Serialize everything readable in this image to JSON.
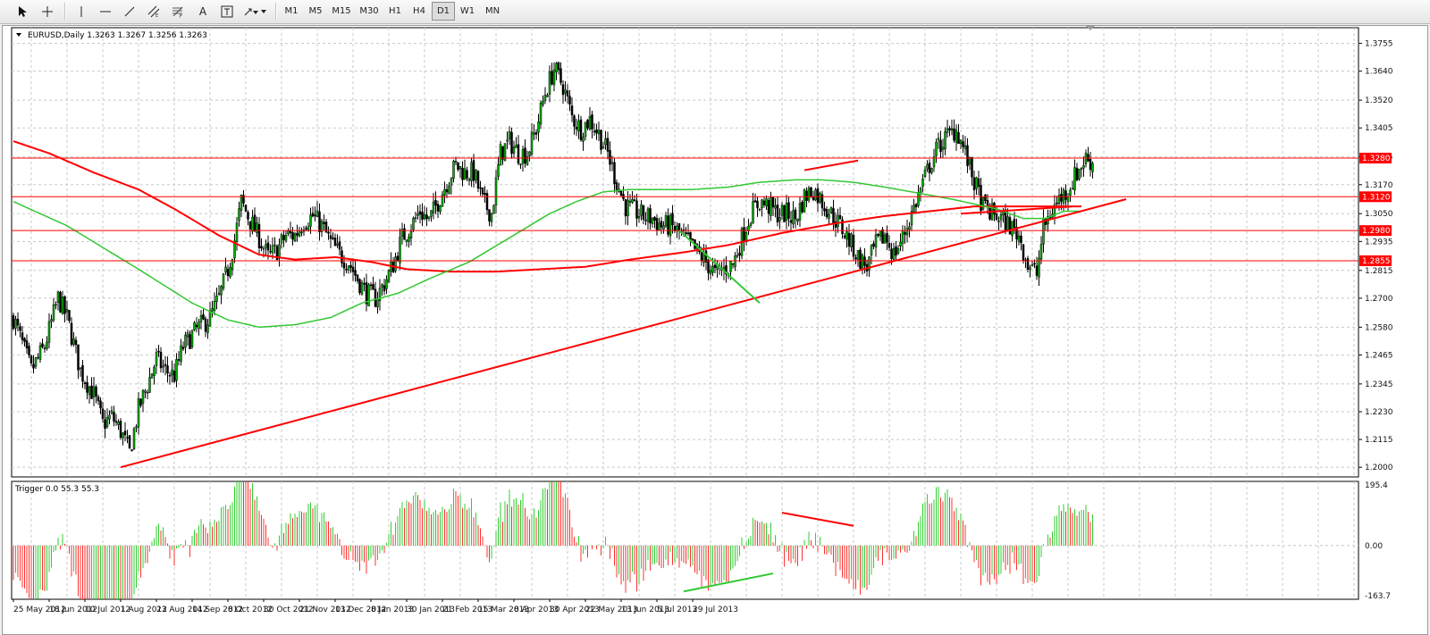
{
  "toolbar": {
    "timeframes": [
      "M1",
      "M5",
      "M15",
      "M30",
      "H1",
      "H4",
      "D1",
      "W1",
      "MN"
    ],
    "active_timeframe": "D1",
    "text_tool_label": "A"
  },
  "colors": {
    "bull": "#00b400",
    "bear": "#000000",
    "grid": "#c8c8c8",
    "resistance": "#ff0000",
    "ma_red": "#ff0000",
    "ma_green": "#32c832",
    "hist_pos": "#32cd32",
    "hist_neg": "#ff3030",
    "tag_bg": "#ff0000"
  },
  "chart_data": [
    {
      "type": "candlestick",
      "symbol_info": "EURUSD,Daily  1.3263 1.3267 1.3256 1.3263",
      "ylim": [
        1.196,
        1.382
      ],
      "y_ticks": [
        "1.3755",
        "1.3640",
        "1.3520",
        "1.3405",
        "1.3285",
        "1.3170",
        "1.3050",
        "1.2935",
        "1.2815",
        "1.2700",
        "1.2580",
        "1.2465",
        "1.2345",
        "1.2230",
        "1.2115",
        "1.2000"
      ],
      "price_levels": [
        {
          "label": "1.3280",
          "value": 1.328
        },
        {
          "label": "1.3120",
          "value": 1.312
        },
        {
          "label": "1.2980",
          "value": 1.298
        },
        {
          "label": "1.2855",
          "value": 1.2855
        }
      ],
      "x_labels": [
        "25 May 2012",
        "18 Jun 2012",
        "10 Jul 2012",
        "1 Aug 2012",
        "23 Aug 2012",
        "14 Sep 2012",
        "8 Oct 2012",
        "30 Oct 2012",
        "21 Nov 2012",
        "13 Dec 2012",
        "8 Jan 2013",
        "30 Jan 2013",
        "21 Feb 2013",
        "15 Mar 2013",
        "8 Apr 2013",
        "30 Apr 2013",
        "22 May 2013",
        "13 Jun 2013",
        "5 Jul 2013",
        "29 Jul 2013"
      ],
      "bars_per_label": 16,
      "price_path": [
        [
          0,
          1.262
        ],
        [
          8,
          1.24
        ],
        [
          14,
          1.25
        ],
        [
          20,
          1.27
        ],
        [
          24,
          1.262
        ],
        [
          30,
          1.24
        ],
        [
          36,
          1.23
        ],
        [
          40,
          1.218
        ],
        [
          44,
          1.221
        ],
        [
          48,
          1.215
        ],
        [
          52,
          1.206
        ],
        [
          56,
          1.224
        ],
        [
          60,
          1.234
        ],
        [
          64,
          1.245
        ],
        [
          68,
          1.24
        ],
        [
          72,
          1.238
        ],
        [
          76,
          1.25
        ],
        [
          82,
          1.257
        ],
        [
          88,
          1.262
        ],
        [
          92,
          1.27
        ],
        [
          96,
          1.282
        ],
        [
          99,
          1.294
        ],
        [
          102,
          1.31
        ],
        [
          106,
          1.302
        ],
        [
          110,
          1.295
        ],
        [
          114,
          1.287
        ],
        [
          118,
          1.29
        ],
        [
          122,
          1.296
        ],
        [
          126,
          1.296
        ],
        [
          130,
          1.302
        ],
        [
          134,
          1.304
        ],
        [
          138,
          1.3
        ],
        [
          142,
          1.293
        ],
        [
          146,
          1.288
        ],
        [
          150,
          1.285
        ],
        [
          154,
          1.278
        ],
        [
          158,
          1.272
        ],
        [
          162,
          1.27
        ],
        [
          166,
          1.276
        ],
        [
          170,
          1.284
        ],
        [
          174,
          1.295
        ],
        [
          178,
          1.3
        ],
        [
          182,
          1.306
        ],
        [
          186,
          1.302
        ],
        [
          190,
          1.31
        ],
        [
          194,
          1.318
        ],
        [
          198,
          1.325
        ],
        [
          202,
          1.322
        ],
        [
          206,
          1.322
        ],
        [
          210,
          1.31
        ],
        [
          214,
          1.305
        ],
        [
          218,
          1.33
        ],
        [
          222,
          1.335
        ],
        [
          226,
          1.33
        ],
        [
          230,
          1.33
        ],
        [
          234,
          1.34
        ],
        [
          238,
          1.355
        ],
        [
          242,
          1.365
        ],
        [
          246,
          1.358
        ],
        [
          250,
          1.345
        ],
        [
          254,
          1.34
        ],
        [
          258,
          1.344
        ],
        [
          262,
          1.338
        ],
        [
          266,
          1.33
        ],
        [
          270,
          1.318
        ],
        [
          274,
          1.308
        ],
        [
          278,
          1.306
        ],
        [
          282,
          1.304
        ],
        [
          286,
          1.303
        ],
        [
          290,
          1.3
        ],
        [
          294,
          1.3
        ],
        [
          298,
          1.297
        ],
        [
          302,
          1.293
        ],
        [
          306,
          1.289
        ],
        [
          310,
          1.285
        ],
        [
          314,
          1.28
        ],
        [
          318,
          1.282
        ],
        [
          322,
          1.284
        ],
        [
          326,
          1.295
        ],
        [
          330,
          1.305
        ],
        [
          334,
          1.31
        ],
        [
          338,
          1.308
        ],
        [
          342,
          1.305
        ],
        [
          346,
          1.305
        ],
        [
          350,
          1.303
        ],
        [
          354,
          1.312
        ],
        [
          358,
          1.315
        ],
        [
          362,
          1.31
        ],
        [
          366,
          1.305
        ],
        [
          370,
          1.3
        ],
        [
          374,
          1.294
        ],
        [
          378,
          1.287
        ],
        [
          382,
          1.283
        ],
        [
          386,
          1.292
        ],
        [
          390,
          1.296
        ],
        [
          394,
          1.288
        ],
        [
          398,
          1.295
        ],
        [
          402,
          1.305
        ],
        [
          406,
          1.315
        ],
        [
          410,
          1.325
        ],
        [
          414,
          1.333
        ],
        [
          418,
          1.337
        ],
        [
          422,
          1.34
        ],
        [
          426,
          1.33
        ],
        [
          430,
          1.318
        ],
        [
          434,
          1.308
        ],
        [
          438,
          1.305
        ],
        [
          442,
          1.303
        ],
        [
          446,
          1.3
        ],
        [
          450,
          1.296
        ],
        [
          454,
          1.284
        ],
        [
          458,
          1.28
        ],
        [
          461,
          1.299
        ],
        [
          464,
          1.305
        ],
        [
          468,
          1.311
        ],
        [
          472,
          1.315
        ],
        [
          476,
          1.322
        ],
        [
          480,
          1.328
        ],
        [
          483,
          1.326
        ]
      ],
      "ma_green": [
        [
          0,
          1.31
        ],
        [
          24,
          1.3
        ],
        [
          56,
          1.282
        ],
        [
          80,
          1.268
        ],
        [
          96,
          1.261
        ],
        [
          110,
          1.258
        ],
        [
          126,
          1.259
        ],
        [
          142,
          1.262
        ],
        [
          156,
          1.268
        ],
        [
          172,
          1.272
        ],
        [
          186,
          1.278
        ],
        [
          204,
          1.285
        ],
        [
          222,
          1.295
        ],
        [
          240,
          1.305
        ],
        [
          252,
          1.31
        ],
        [
          264,
          1.314
        ],
        [
          276,
          1.315
        ],
        [
          290,
          1.315
        ],
        [
          304,
          1.315
        ],
        [
          320,
          1.316
        ],
        [
          334,
          1.318
        ],
        [
          350,
          1.319
        ],
        [
          362,
          1.319
        ],
        [
          376,
          1.318
        ],
        [
          390,
          1.316
        ],
        [
          402,
          1.314
        ],
        [
          420,
          1.311
        ],
        [
          430,
          1.309
        ],
        [
          440,
          1.307
        ],
        [
          452,
          1.303
        ],
        [
          462,
          1.303
        ],
        [
          470,
          1.306
        ],
        [
          478,
          1.306
        ]
      ],
      "ma_red": [
        [
          0,
          1.335
        ],
        [
          16,
          1.33
        ],
        [
          36,
          1.322
        ],
        [
          56,
          1.315
        ],
        [
          72,
          1.307
        ],
        [
          92,
          1.296
        ],
        [
          110,
          1.288
        ],
        [
          126,
          1.286
        ],
        [
          144,
          1.287
        ],
        [
          160,
          1.285
        ],
        [
          176,
          1.282
        ],
        [
          196,
          1.281
        ],
        [
          216,
          1.281
        ],
        [
          236,
          1.282
        ],
        [
          256,
          1.283
        ],
        [
          276,
          1.286
        ],
        [
          300,
          1.289
        ],
        [
          320,
          1.292
        ],
        [
          344,
          1.297
        ],
        [
          368,
          1.301
        ],
        [
          390,
          1.304
        ],
        [
          410,
          1.306
        ],
        [
          430,
          1.308
        ],
        [
          446,
          1.308
        ],
        [
          462,
          1.308
        ],
        [
          478,
          1.308
        ]
      ],
      "trendlines": [
        {
          "color": "red",
          "from": [
            48,
            1.2
          ],
          "to": [
            498,
            1.311
          ]
        },
        {
          "color": "red",
          "from": [
            354,
            1.323
          ],
          "to": [
            378,
            1.327
          ]
        },
        {
          "color": "green",
          "from": [
            298,
            1.298
          ],
          "to": [
            334,
            1.268
          ]
        },
        {
          "color": "red",
          "from": [
            424,
            1.305
          ],
          "to": [
            474,
            1.308
          ]
        }
      ]
    },
    {
      "type": "histogram",
      "indicator_info": "Trigger 0.0 55.3 55.3",
      "ylim": [
        -163.7,
        195.4
      ],
      "y_ticks": [
        "195.4",
        "0.00",
        "-163.7"
      ],
      "trendlines": [
        {
          "color": "red",
          "from": [
            344,
            100
          ],
          "to": [
            376,
            60
          ]
        },
        {
          "color": "green",
          "from": [
            300,
            -140
          ],
          "to": [
            340,
            -85
          ]
        }
      ]
    }
  ]
}
